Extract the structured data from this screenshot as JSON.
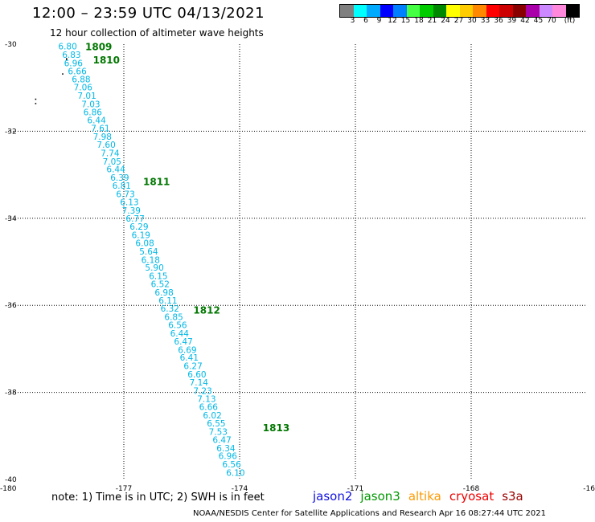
{
  "header": {
    "title": "12:00 – 23:59 UTC 04/13/2021",
    "subtitle": "12 hour collection of altimeter wave heights"
  },
  "legend": {
    "colors": [
      "#808080",
      "#00ffff",
      "#00aaff",
      "#0000ff",
      "#0080ff",
      "#44ff44",
      "#00cc00",
      "#008800",
      "#ffff00",
      "#ffcc00",
      "#ff8800",
      "#ff0000",
      "#cc0000",
      "#880000",
      "#aa00aa",
      "#cc88ff",
      "#ff88dd",
      "#000000"
    ],
    "labels": [
      "3",
      "6",
      "9",
      "12",
      "15",
      "18",
      "21",
      "24",
      "27",
      "30",
      "33",
      "36",
      "39",
      "42",
      "45",
      "70",
      "(ft)"
    ]
  },
  "map": {
    "lat_ticks": [
      "-30",
      "-32",
      "-34",
      "-36",
      "-38",
      "-40"
    ],
    "lon_ticks": [
      "-180",
      "-177",
      "-174",
      "-171",
      "-168",
      "-16"
    ]
  },
  "chart_data": {
    "type": "scatter",
    "x_range": [
      -180,
      -165
    ],
    "y_range": [
      -40,
      -30
    ],
    "points": [
      {
        "lon": -178.7,
        "lat": -30.05,
        "swh": "6.80"
      },
      {
        "lon": -178.6,
        "lat": -30.24,
        "swh": "6.83"
      },
      {
        "lon": -178.55,
        "lat": -30.43,
        "swh": "6.96"
      },
      {
        "lon": -178.45,
        "lat": -30.62,
        "swh": "6.66"
      },
      {
        "lon": -178.35,
        "lat": -30.8,
        "swh": "6.88"
      },
      {
        "lon": -178.3,
        "lat": -30.99,
        "swh": "7.06"
      },
      {
        "lon": -178.2,
        "lat": -31.18,
        "swh": "7.01"
      },
      {
        "lon": -178.1,
        "lat": -31.37,
        "swh": "7.03"
      },
      {
        "lon": -178.05,
        "lat": -31.56,
        "swh": "6.86"
      },
      {
        "lon": -177.95,
        "lat": -31.74,
        "swh": "6.44"
      },
      {
        "lon": -177.85,
        "lat": -31.93,
        "swh": "7.61"
      },
      {
        "lon": -177.8,
        "lat": -32.12,
        "swh": "7.98"
      },
      {
        "lon": -177.7,
        "lat": -32.31,
        "swh": "7.60"
      },
      {
        "lon": -177.6,
        "lat": -32.5,
        "swh": "7.74"
      },
      {
        "lon": -177.55,
        "lat": -32.69,
        "swh": "7.05"
      },
      {
        "lon": -177.45,
        "lat": -32.87,
        "swh": "6.44"
      },
      {
        "lon": -177.35,
        "lat": -33.06,
        "swh": "6.39"
      },
      {
        "lon": -177.3,
        "lat": -33.25,
        "swh": "6.81"
      },
      {
        "lon": -177.2,
        "lat": -33.44,
        "swh": "6.73"
      },
      {
        "lon": -177.1,
        "lat": -33.63,
        "swh": "6.13"
      },
      {
        "lon": -177.05,
        "lat": -33.82,
        "swh": "7.39"
      },
      {
        "lon": -176.95,
        "lat": -34.0,
        "swh": "6.77"
      },
      {
        "lon": -176.85,
        "lat": -34.19,
        "swh": "6.29"
      },
      {
        "lon": -176.8,
        "lat": -34.38,
        "swh": "6.19"
      },
      {
        "lon": -176.7,
        "lat": -34.57,
        "swh": "6.08"
      },
      {
        "lon": -176.6,
        "lat": -34.76,
        "swh": "5.64"
      },
      {
        "lon": -176.55,
        "lat": -34.95,
        "swh": "6.18"
      },
      {
        "lon": -176.45,
        "lat": -35.13,
        "swh": "5.90"
      },
      {
        "lon": -176.35,
        "lat": -35.32,
        "swh": "6.15"
      },
      {
        "lon": -176.3,
        "lat": -35.51,
        "swh": "6.52"
      },
      {
        "lon": -176.2,
        "lat": -35.7,
        "swh": "6.98"
      },
      {
        "lon": -176.1,
        "lat": -35.89,
        "swh": "6.11"
      },
      {
        "lon": -176.05,
        "lat": -36.07,
        "swh": "6.32"
      },
      {
        "lon": -175.95,
        "lat": -36.26,
        "swh": "6.85"
      },
      {
        "lon": -175.85,
        "lat": -36.45,
        "swh": "6.56"
      },
      {
        "lon": -175.8,
        "lat": -36.64,
        "swh": "6.44"
      },
      {
        "lon": -175.7,
        "lat": -36.83,
        "swh": "6.47"
      },
      {
        "lon": -175.6,
        "lat": -37.02,
        "swh": "6.69"
      },
      {
        "lon": -175.55,
        "lat": -37.2,
        "swh": "6.41"
      },
      {
        "lon": -175.45,
        "lat": -37.39,
        "swh": "6.27"
      },
      {
        "lon": -175.35,
        "lat": -37.58,
        "swh": "6.60"
      },
      {
        "lon": -175.3,
        "lat": -37.77,
        "swh": "7.14"
      },
      {
        "lon": -175.2,
        "lat": -37.96,
        "swh": "7.23"
      },
      {
        "lon": -175.1,
        "lat": -38.15,
        "swh": "7.13"
      },
      {
        "lon": -175.05,
        "lat": -38.33,
        "swh": "6.66"
      },
      {
        "lon": -174.95,
        "lat": -38.52,
        "swh": "6.02"
      },
      {
        "lon": -174.85,
        "lat": -38.71,
        "swh": "6.55"
      },
      {
        "lon": -174.8,
        "lat": -38.9,
        "swh": "7.53"
      },
      {
        "lon": -174.7,
        "lat": -39.09,
        "swh": "6.47"
      },
      {
        "lon": -174.6,
        "lat": -39.28,
        "swh": "6.34"
      },
      {
        "lon": -174.55,
        "lat": -39.46,
        "swh": "6.96"
      },
      {
        "lon": -174.45,
        "lat": -39.65,
        "swh": "6.56"
      },
      {
        "lon": -174.35,
        "lat": -39.84,
        "swh": "6.10"
      }
    ],
    "time_labels": [
      {
        "lon": -178.0,
        "lat": -30.05,
        "text": "1809"
      },
      {
        "lon": -177.8,
        "lat": -30.35,
        "text": "1810"
      },
      {
        "lon": -176.5,
        "lat": -33.15,
        "text": "1811"
      },
      {
        "lon": -175.2,
        "lat": -36.1,
        "text": "1812"
      },
      {
        "lon": -173.4,
        "lat": -38.8,
        "text": "1813"
      }
    ],
    "land_dots": [
      {
        "lon": -178.5,
        "lat": -30.32
      },
      {
        "lon": -178.5,
        "lat": -30.35
      },
      {
        "lon": -178.6,
        "lat": -30.67
      },
      {
        "lon": -179.3,
        "lat": -31.25
      },
      {
        "lon": -179.3,
        "lat": -31.35
      }
    ]
  },
  "note": "note: 1) Time is in UTC; 2) SWH is in feet",
  "satellites": [
    {
      "name": "jason2",
      "color": "#1010dd"
    },
    {
      "name": "jason3",
      "color": "#009900"
    },
    {
      "name": "altika",
      "color": "#ff9900"
    },
    {
      "name": "cryosat",
      "color": "#ee0000"
    },
    {
      "name": "s3a",
      "color": "#990000"
    }
  ],
  "footer": "NOAA/NESDIS Center for Satellite Applications and Research    Apr 16 08:27:44 UTC 2021"
}
